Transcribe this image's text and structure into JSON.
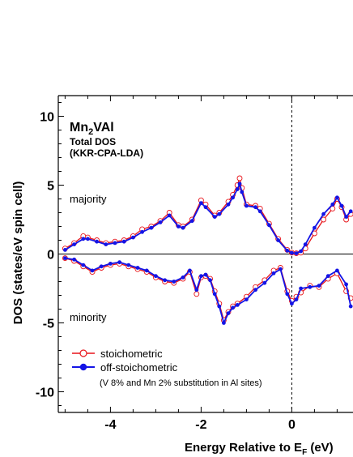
{
  "chart_data": {
    "type": "line",
    "title": "Mn",
    "title_sub1": "2",
    "title_rest": "VAl",
    "subtitle": [
      "Total DOS",
      "(KKR-CPA-LDA)"
    ],
    "xlabel": "Energy Relative to E",
    "xlabel_sub": "F",
    "xlabel_unit": " (eV)",
    "ylabel": "DOS (states/eV spin cell)",
    "xlim": [
      -5.15,
      1.35
    ],
    "ylim": [
      -11.5,
      11.5
    ],
    "x_ticks": [
      -4,
      -2,
      0
    ],
    "y_ticks": [
      10,
      5,
      0,
      -5,
      -10
    ],
    "x_tick_labels": [
      "-4",
      "-2",
      "0"
    ],
    "y_tick_labels": [
      "10",
      "5",
      "0",
      "-5",
      "-10"
    ],
    "annotations": [
      "majority",
      "minority"
    ],
    "fermi_line_x": 0,
    "legend": {
      "entries": [
        "stoichometric",
        "off-stoichometric"
      ],
      "note": "(V 8% and Mn 2% substitution in Al sites)",
      "placement": "bottom-left"
    },
    "colors": {
      "stoichiometric": "#e8141a",
      "off_stoichiometric": "#1414e6"
    },
    "series": [
      {
        "name": "stoichometric",
        "marker": "open-circle",
        "majority": {
          "x": [
            -5.0,
            -4.8,
            -4.6,
            -4.5,
            -4.3,
            -4.1,
            -3.9,
            -3.7,
            -3.5,
            -3.3,
            -3.1,
            -2.9,
            -2.7,
            -2.5,
            -2.4,
            -2.2,
            -2.0,
            -1.9,
            -1.7,
            -1.6,
            -1.4,
            -1.3,
            -1.2,
            -1.15,
            -1.1,
            -1.0,
            -0.8,
            -0.7,
            -0.5,
            -0.3,
            -0.1,
            0.0,
            0.1,
            0.2,
            0.3,
            0.5,
            0.7,
            0.9,
            1.0,
            1.1,
            1.2,
            1.3
          ],
          "y": [
            0.4,
            0.8,
            1.3,
            1.2,
            1.0,
            0.8,
            0.9,
            1.0,
            1.3,
            1.8,
            2.0,
            2.4,
            3.0,
            2.1,
            2.0,
            2.5,
            3.9,
            3.6,
            2.8,
            3.0,
            3.8,
            4.3,
            5.0,
            5.5,
            4.8,
            3.6,
            3.5,
            3.3,
            2.2,
            1.1,
            0.3,
            0.1,
            0.05,
            0.1,
            0.4,
            1.5,
            2.5,
            3.3,
            4.0,
            3.4,
            2.5,
            2.9
          ]
        },
        "minority": {
          "x": [
            -5.0,
            -4.8,
            -4.6,
            -4.4,
            -4.2,
            -4.0,
            -3.8,
            -3.6,
            -3.4,
            -3.2,
            -3.0,
            -2.8,
            -2.6,
            -2.4,
            -2.25,
            -2.1,
            -2.0,
            -1.9,
            -1.8,
            -1.7,
            -1.6,
            -1.5,
            -1.4,
            -1.3,
            -1.2,
            -1.0,
            -0.8,
            -0.6,
            -0.4,
            -0.25,
            -0.1,
            0.0,
            0.1,
            0.2,
            0.4,
            0.6,
            0.8,
            1.0,
            1.2,
            1.3
          ],
          "y": [
            -0.3,
            -0.5,
            -0.9,
            -1.3,
            -1.0,
            -0.8,
            -0.7,
            -0.9,
            -1.1,
            -1.3,
            -1.7,
            -2.0,
            -2.1,
            -1.8,
            -1.3,
            -2.9,
            -1.7,
            -1.6,
            -1.8,
            -2.7,
            -3.6,
            -4.8,
            -4.2,
            -3.8,
            -3.6,
            -3.1,
            -2.4,
            -1.9,
            -1.2,
            -1.0,
            -2.7,
            -3.4,
            -3.1,
            -2.8,
            -2.3,
            -2.4,
            -1.8,
            -1.4,
            -2.7,
            -3.2
          ]
        }
      },
      {
        "name": "off-stoichometric",
        "marker": "filled-circle",
        "majority": {
          "x": [
            -5.0,
            -4.8,
            -4.6,
            -4.5,
            -4.3,
            -4.1,
            -3.9,
            -3.7,
            -3.5,
            -3.3,
            -3.1,
            -2.9,
            -2.7,
            -2.5,
            -2.4,
            -2.2,
            -2.0,
            -1.9,
            -1.7,
            -1.6,
            -1.4,
            -1.3,
            -1.2,
            -1.15,
            -1.1,
            -1.0,
            -0.8,
            -0.7,
            -0.5,
            -0.3,
            -0.1,
            0.0,
            0.1,
            0.2,
            0.3,
            0.5,
            0.7,
            0.9,
            1.0,
            1.1,
            1.2,
            1.3
          ],
          "y": [
            0.3,
            0.7,
            1.1,
            1.1,
            0.9,
            0.7,
            0.8,
            0.9,
            1.2,
            1.6,
            1.9,
            2.3,
            2.8,
            2.0,
            1.9,
            2.4,
            3.7,
            3.4,
            2.7,
            2.9,
            3.6,
            4.1,
            4.7,
            5.1,
            4.5,
            3.5,
            3.4,
            3.1,
            2.1,
            1.0,
            0.25,
            0.08,
            0.05,
            0.2,
            0.7,
            1.9,
            2.9,
            3.6,
            4.1,
            3.5,
            2.7,
            3.1
          ]
        },
        "minority": {
          "x": [
            -5.0,
            -4.8,
            -4.6,
            -4.4,
            -4.2,
            -4.0,
            -3.8,
            -3.6,
            -3.4,
            -3.2,
            -3.0,
            -2.8,
            -2.6,
            -2.4,
            -2.25,
            -2.1,
            -2.0,
            -1.9,
            -1.8,
            -1.7,
            -1.6,
            -1.5,
            -1.4,
            -1.3,
            -1.2,
            -1.0,
            -0.8,
            -0.6,
            -0.4,
            -0.25,
            -0.1,
            0.0,
            0.1,
            0.2,
            0.4,
            0.6,
            0.8,
            1.0,
            1.2,
            1.3
          ],
          "y": [
            -0.3,
            -0.4,
            -0.8,
            -1.2,
            -0.9,
            -0.7,
            -0.6,
            -0.8,
            -1.0,
            -1.2,
            -1.6,
            -1.9,
            -2.0,
            -1.7,
            -1.2,
            -2.6,
            -1.6,
            -1.5,
            -1.9,
            -2.9,
            -3.8,
            -5.0,
            -4.3,
            -3.9,
            -3.7,
            -3.3,
            -2.6,
            -2.1,
            -1.4,
            -1.1,
            -2.9,
            -3.6,
            -3.3,
            -2.5,
            -2.4,
            -2.3,
            -1.6,
            -1.2,
            -2.2,
            -3.8
          ]
        }
      }
    ]
  }
}
